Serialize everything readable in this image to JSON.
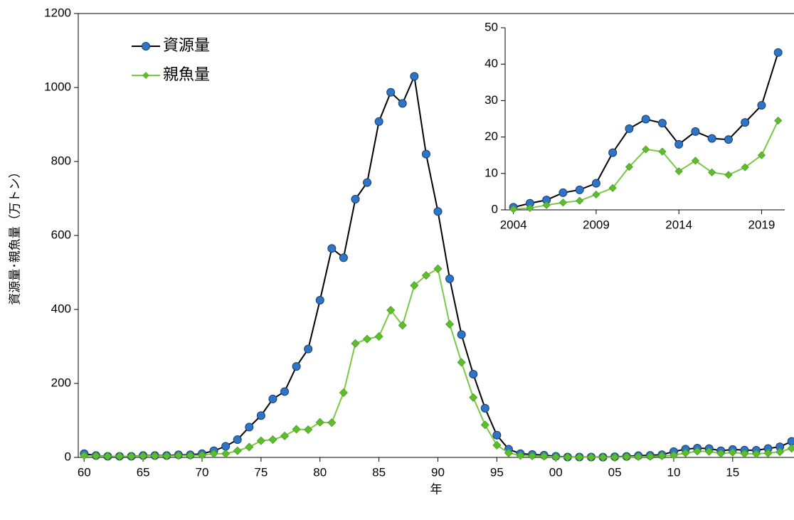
{
  "chart_data": [
    {
      "type": "line",
      "xlabel": "年",
      "ylabel": "資源量･親魚量（万トン）",
      "legend": "top-left",
      "x": [
        1960,
        1961,
        1962,
        1963,
        1964,
        1965,
        1966,
        1967,
        1968,
        1969,
        1970,
        1971,
        1972,
        1973,
        1974,
        1975,
        1976,
        1977,
        1978,
        1979,
        1980,
        1981,
        1982,
        1983,
        1984,
        1985,
        1986,
        1987,
        1988,
        1989,
        1990,
        1991,
        1992,
        1993,
        1994,
        1995,
        1996,
        1997,
        1998,
        1999,
        2000,
        2001,
        2002,
        2003,
        2004,
        2005,
        2006,
        2007,
        2008,
        2009,
        2010,
        2011,
        2012,
        2013,
        2014,
        2015,
        2016,
        2017,
        2018,
        2019,
        2020
      ],
      "series": [
        {
          "name": "資源量",
          "color": "#000000",
          "marker": "circle",
          "marker_color": "#2e75c8",
          "values": [
            10,
            5,
            3,
            3,
            3,
            5,
            5,
            5,
            7,
            7,
            10,
            18,
            30,
            48,
            82,
            113,
            158,
            178,
            246,
            293,
            425,
            565,
            540,
            698,
            743,
            908,
            987,
            957,
            1030,
            820,
            665,
            483,
            332,
            225,
            133,
            60,
            22,
            10,
            8,
            6,
            3,
            1,
            1,
            1,
            0.7,
            1.8,
            2.7,
            4.7,
            5.5,
            7.3,
            15.7,
            22.3,
            24.9,
            23.8,
            18,
            21.5,
            19.6,
            19.3,
            24,
            28.7,
            43.2
          ]
        },
        {
          "name": "親魚量",
          "color": "#7ac943",
          "marker": "diamond",
          "marker_color": "#5cbf2a",
          "values": [
            5,
            4,
            3,
            3,
            3,
            4,
            4,
            4,
            5,
            5,
            6,
            10,
            10,
            18,
            28,
            45,
            48,
            58,
            76,
            75,
            95,
            94,
            175,
            308,
            320,
            327,
            398,
            357,
            465,
            492,
            510,
            360,
            257,
            162,
            88,
            33,
            12,
            5,
            4,
            3,
            1,
            0.5,
            0.5,
            0.5,
            0.2,
            0.5,
            1.3,
            2,
            2.5,
            4.2,
            6,
            11.8,
            16.6,
            16,
            10.6,
            13.5,
            10.3,
            9.6,
            11.7,
            15,
            24.5
          ]
        }
      ],
      "xlim": [
        1959.5,
        2020.2
      ],
      "xticks": [
        {
          "value": 1960,
          "label": "60"
        },
        {
          "value": 1965,
          "label": "65"
        },
        {
          "value": 1970,
          "label": "70"
        },
        {
          "value": 1975,
          "label": "75"
        },
        {
          "value": 1980,
          "label": "80"
        },
        {
          "value": 1985,
          "label": "85"
        },
        {
          "value": 1990,
          "label": "90"
        },
        {
          "value": 1995,
          "label": "95"
        },
        {
          "value": 2000,
          "label": "00"
        },
        {
          "value": 2005,
          "label": "05"
        },
        {
          "value": 2010,
          "label": "10"
        },
        {
          "value": 2015,
          "label": "15"
        }
      ],
      "ylim": [
        0,
        1200
      ],
      "yticks": [
        0,
        200,
        400,
        600,
        800,
        1000,
        1200
      ],
      "grid": false
    },
    {
      "type": "line",
      "x": [
        2004,
        2005,
        2006,
        2007,
        2008,
        2009,
        2010,
        2011,
        2012,
        2013,
        2014,
        2015,
        2016,
        2017,
        2018,
        2019,
        2020
      ],
      "series": [
        {
          "color": "#000000",
          "marker": "circle",
          "marker_color": "#2e75c8",
          "values": [
            0.7,
            1.8,
            2.7,
            4.7,
            5.5,
            7.3,
            15.7,
            22.3,
            24.9,
            23.8,
            18,
            21.5,
            19.6,
            19.3,
            24,
            28.7,
            43.2
          ]
        },
        {
          "color": "#7ac943",
          "marker": "diamond",
          "marker_color": "#5cbf2a",
          "values": [
            0.2,
            0.5,
            1.3,
            2,
            2.5,
            4.2,
            6,
            11.8,
            16.6,
            16,
            10.6,
            13.5,
            10.3,
            9.6,
            11.7,
            15,
            24.5
          ]
        }
      ],
      "xlim": [
        2003.5,
        2020.4
      ],
      "xticks": [
        2004,
        2009,
        2014,
        2019
      ],
      "ylim": [
        0,
        50
      ],
      "yticks": [
        0,
        10,
        20,
        30,
        40,
        50
      ],
      "grid": false
    }
  ]
}
